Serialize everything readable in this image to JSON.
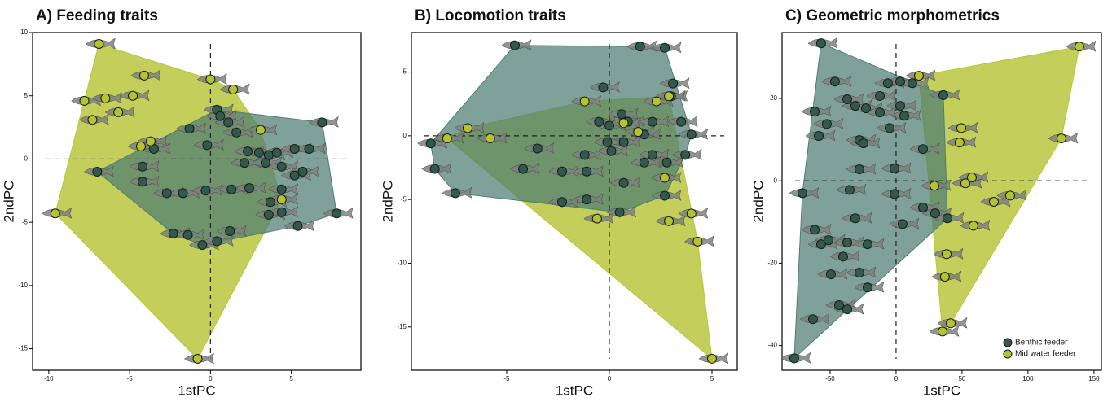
{
  "chart_data": [
    {
      "type": "scatter",
      "title": "A) Feeding traits",
      "x_label": "1stPC",
      "y_label": "2ndPC",
      "xlim": [
        -11,
        9.3
      ],
      "ylim": [
        -16.7,
        10
      ],
      "xticks": [
        -10,
        -5,
        0,
        5
      ],
      "yticks": [
        10,
        5,
        0,
        -5,
        -10,
        -15
      ],
      "zero_lines": true,
      "series": [
        {
          "color": "#2f5a4c",
          "hull_color": "#4f7d72",
          "x": [
            -7.0,
            -1.3,
            -0.2,
            0.4,
            0.6,
            1.1,
            1.6,
            2.3,
            3.0,
            3.6,
            4.1,
            5.2,
            6.1,
            2.1,
            3.4,
            4.4,
            5.7,
            -4.2,
            -4.2,
            -2.7,
            -1.7,
            -0.3,
            1.3,
            2.4,
            4.4,
            3.7,
            3.6,
            4.4,
            -2.3,
            -1.4,
            -0.5,
            0.4,
            1.2,
            5.4,
            7.8,
            6.9,
            -3.5,
            5.2
          ],
          "values": [
            -1.0,
            2.4,
            1.1,
            3.9,
            3.4,
            2.9,
            2.1,
            0.6,
            0.5,
            0.3,
            0.5,
            0.8,
            0.8,
            -0.3,
            -0.3,
            -0.6,
            -1.0,
            -0.6,
            -1.8,
            -2.7,
            -2.7,
            -2.5,
            -2.4,
            -2.3,
            -2.4,
            -3.4,
            -4.4,
            -4.2,
            -5.9,
            -6.0,
            -6.8,
            -6.5,
            -5.7,
            -5.3,
            -4.3,
            2.9,
            0.8,
            -1.3
          ]
        },
        {
          "color": "#b5c232",
          "hull_color": "#b8c63e",
          "x": [
            -6.9,
            -4.1,
            0,
            1.4,
            -7.8,
            -6.5,
            -4.8,
            -5.7,
            -7.3,
            -3.7,
            -4.3,
            3.1,
            -9.6,
            -0.8,
            4.4
          ],
          "values": [
            9.1,
            6.6,
            6.3,
            5.5,
            4.6,
            4.8,
            5.0,
            3.7,
            3.1,
            1.4,
            1.0,
            2.3,
            -4.3,
            -15.8,
            -3.2
          ]
        }
      ]
    },
    {
      "type": "scatter",
      "title": "B) Locomotion traits",
      "x_label": "1stPC",
      "y_label": "2ndPC",
      "xlim": [
        -9.64,
        6.23
      ],
      "ylim": [
        -18.4,
        8.1
      ],
      "xticks": [
        -5,
        0,
        5
      ],
      "yticks": [
        5,
        0,
        -5,
        -10,
        -15
      ],
      "zero_lines": true,
      "series": [
        {
          "color": "#2f5a4c",
          "hull_color": "#4f7d72",
          "x": [
            -8.7,
            -4.6,
            1.5,
            2.7,
            -0.3,
            3.1,
            3.0,
            -7.5,
            -8.5,
            -3.5,
            -4.2,
            -2.3,
            -1.1,
            -1.2,
            0.1,
            0.7,
            1.7,
            2.1,
            2.8,
            3.7,
            4.0,
            3.5,
            0.6,
            -0.5,
            0,
            0.9,
            2.1,
            0.7,
            2.7,
            -1.1,
            -2.3,
            0.5,
            1.7,
            -0.1
          ],
          "values": [
            -0.6,
            7.1,
            7.0,
            6.9,
            3.8,
            4.1,
            3.1,
            -4.5,
            -2.6,
            -1.0,
            -2.6,
            -2.8,
            -2.8,
            -1.5,
            -1.2,
            -0.5,
            0.1,
            -1.5,
            -2.1,
            -1.5,
            0.1,
            1.1,
            1.7,
            1.1,
            0.8,
            1.1,
            1.1,
            -3.7,
            -4.7,
            -5.0,
            -5.2,
            -6.0,
            -2.1,
            -0.5
          ]
        },
        {
          "color": "#b5c232",
          "hull_color": "#b8c63e",
          "x": [
            -7.9,
            -6.9,
            -5.8,
            -1.2,
            0.7,
            1.4,
            2.3,
            2.9,
            2.7,
            2.9,
            4.0,
            4.3,
            5.0,
            -0.6
          ],
          "values": [
            -0.2,
            0.6,
            -0.2,
            2.7,
            1.0,
            0.3,
            2.7,
            3.1,
            -3.3,
            -6.7,
            -6.1,
            -8.3,
            -17.5,
            -6.5
          ]
        }
      ]
    },
    {
      "type": "scatter",
      "title": "C) Geometric morphometrics",
      "x_label": "1stPC",
      "y_label": "2ndPC",
      "xlim": [
        -86.4,
        155.6
      ],
      "ylim": [
        -46,
        36
      ],
      "xticks": [
        -50,
        0,
        50,
        100,
        150
      ],
      "yticks": [
        20,
        0,
        -20,
        -40
      ],
      "zero_lines": true,
      "legend": "bottom-right",
      "series": [
        {
          "name": "Benthic feeder",
          "color": "#2f5a4c",
          "hull_color": "#4f7d72",
          "x": [
            -56.8,
            -61.7,
            -52.5,
            -58.6,
            -46.3,
            -37.0,
            -30.9,
            -22.8,
            -12.3,
            -6.2,
            3.1,
            12.3,
            3.1,
            6.2,
            -4.9,
            -12.3,
            -27.8,
            -24.7,
            -27.8,
            -1.2,
            20.4,
            35.8,
            -71.0,
            -35.2,
            -1.2,
            -30.9,
            -61.7,
            -56.8,
            -51.2,
            -37.0,
            -21.6,
            4.9,
            20.4,
            29.6,
            38.9,
            -49.4,
            -27.8,
            -21.6,
            -43.2,
            -37.0,
            -63.0,
            -77.2,
            -40.1
          ],
          "values": [
            33.4,
            16.8,
            13.8,
            10.9,
            24.1,
            19.8,
            18.2,
            17.6,
            20.6,
            23.7,
            24.1,
            23.7,
            18.2,
            15.8,
            12.8,
            16.6,
            9.9,
            9.1,
            2.8,
            3.0,
            7.7,
            20.8,
            -3.0,
            -2.2,
            -3.2,
            -9.1,
            -11.9,
            -15.4,
            -14.4,
            -15.0,
            -15.4,
            -10.5,
            -6.5,
            -7.9,
            -9.1,
            -22.7,
            -22.3,
            -25.9,
            -30.2,
            -31.2,
            -33.6,
            -43.1,
            -18.4
          ]
        },
        {
          "name": "Mid water feeder",
          "color": "#b5c232",
          "hull_color": "#b8c63e",
          "x": [
            17.3,
            138.9,
            125.3,
            49.4,
            48.1,
            29.0,
            52.5,
            57.4,
            86.4,
            74.1,
            58.6,
            38.3,
            37.0,
            41.4,
            35.2
          ],
          "values": [
            25.5,
            32.6,
            10.3,
            12.8,
            9.3,
            -1.2,
            -0.6,
            0.8,
            -3.6,
            -5.1,
            -10.9,
            -17.8,
            -23.3,
            -34.6,
            -36.6
          ]
        }
      ]
    }
  ]
}
